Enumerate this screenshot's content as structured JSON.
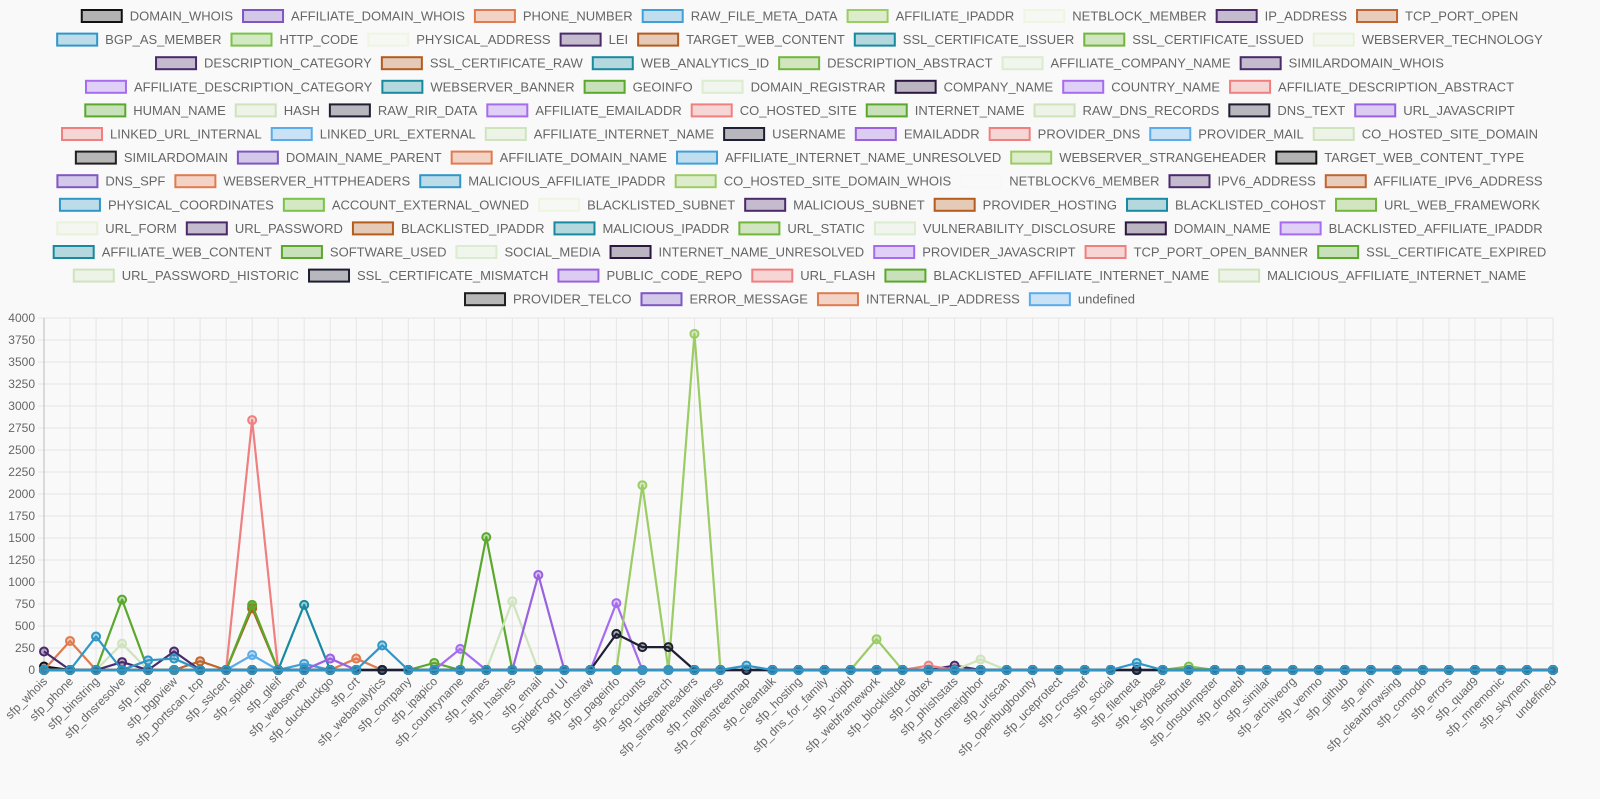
{
  "chart_data": {
    "type": "line",
    "ylim": [
      0,
      4000
    ],
    "yticks": [
      0,
      250,
      500,
      750,
      1000,
      1250,
      1500,
      1750,
      2000,
      2250,
      2500,
      2750,
      3000,
      3250,
      3500,
      3750,
      4000
    ],
    "grid": true,
    "legend_position": "top",
    "categories": [
      "sfp_whois",
      "sfp_phone",
      "sfp_binstring",
      "sfp_dnsresolve",
      "sfp_ripe",
      "sfp_bgpview",
      "sfp_portscan_tcp",
      "sfp_sslcert",
      "sfp_spider",
      "sfp_gleif",
      "sfp_webserver",
      "sfp_duckduckgo",
      "sfp_crt",
      "sfp_webanalytics",
      "sfp_company",
      "sfp_ipapico",
      "sfp_countryname",
      "sfp_names",
      "sfp_hashes",
      "sfp_email",
      "SpiderFoot UI",
      "sfp_dnsraw",
      "sfp_pageinfo",
      "sfp_accounts",
      "sfp_tldsearch",
      "sfp_strangeheaders",
      "sfp_malliverse",
      "sfp_openstreetmap",
      "sfp_cleantalk",
      "sfp_hosting",
      "sfp_dns_for_family",
      "sfp_voipbl",
      "sfp_webframework",
      "sfp_blocklistde",
      "sfp_robtex",
      "sfp_phishstats",
      "sfp_dnsneighbor",
      "sfp_urlscan",
      "sfp_openbugbounty",
      "sfp_uceprotect",
      "sfp_crossref",
      "sfp_social",
      "sfp_filemeta",
      "sfp_keybase",
      "sfp_dnsbrute",
      "sfp_dnsdumpster",
      "sfp_dronebl",
      "sfp_similar",
      "sfp_archiveorg",
      "sfp_venmo",
      "sfp_github",
      "sfp_arin",
      "sfp_cleanbrowsing",
      "sfp_comodo",
      "sfp_errors",
      "sfp_quad9",
      "sfp_mnemonic",
      "sfp_skymem",
      "undefined"
    ],
    "series": [
      {
        "name": "DOMAIN_WHOIS",
        "color": "#111111",
        "points": {
          "sfp_whois": 40
        }
      },
      {
        "name": "AFFILIATE_DOMAIN_WHOIS",
        "color": "#7e57c2",
        "points": {}
      },
      {
        "name": "PHONE_NUMBER",
        "color": "#e07b4f",
        "points": {
          "sfp_phone": 330
        }
      },
      {
        "name": "RAW_FILE_META_DATA",
        "color": "#3fa0d8",
        "points": {}
      },
      {
        "name": "AFFILIATE_IPADDR",
        "color": "#9ccc65",
        "points": {}
      },
      {
        "name": "NETBLOCK_MEMBER",
        "color": "#eef5e3",
        "points": {}
      },
      {
        "name": "IP_ADDRESS",
        "color": "#4a2a6b",
        "points": {
          "sfp_whois": 210,
          "sfp_dnsresolve": 90,
          "sfp_bgpview": 210
        }
      },
      {
        "name": "TCP_PORT_OPEN",
        "color": "#c0652f",
        "points": {
          "sfp_portscan_tcp": 100
        }
      },
      {
        "name": "BGP_AS_MEMBER",
        "color": "#2f97c7",
        "points": {
          "sfp_binstring": 380,
          "sfp_ripe": 110,
          "sfp_bgpview": 130
        }
      },
      {
        "name": "HTTP_CODE",
        "color": "#7cc24a",
        "points": {
          "sfp_spider": 720
        }
      },
      {
        "name": "PHYSICAL_ADDRESS",
        "color": "#eef5e3",
        "points": {}
      },
      {
        "name": "LEI",
        "color": "#4a2a6b",
        "points": {}
      },
      {
        "name": "TARGET_WEB_CONTENT",
        "color": "#b45c1e",
        "points": {
          "sfp_spider": 700
        }
      },
      {
        "name": "SSL_CERTIFICATE_ISSUER",
        "color": "#178aa0",
        "points": {}
      },
      {
        "name": "SSL_CERTIFICATE_ISSUED",
        "color": "#72b63b",
        "points": {}
      },
      {
        "name": "WEBSERVER_TECHNOLOGY",
        "color": "#e8f2da",
        "points": {}
      },
      {
        "name": "DESCRIPTION_CATEGORY",
        "color": "#4a2a6b",
        "points": {}
      },
      {
        "name": "SSL_CERTIFICATE_RAW",
        "color": "#b45c1e",
        "points": {}
      },
      {
        "name": "WEB_ANALYTICS_ID",
        "color": "#178aa0",
        "points": {}
      },
      {
        "name": "DESCRIPTION_ABSTRACT",
        "color": "#72b63b",
        "points": {}
      },
      {
        "name": "AFFILIATE_COMPANY_NAME",
        "color": "#dceccf",
        "points": {}
      },
      {
        "name": "SIMILARDOMAIN_WHOIS",
        "color": "#4a2a6b",
        "points": {}
      },
      {
        "name": "AFFILIATE_DESCRIPTION_CATEGORY",
        "color": "#a66cf0",
        "points": {}
      },
      {
        "name": "WEBSERVER_BANNER",
        "color": "#178aa0",
        "points": {
          "sfp_webserver": 740
        }
      },
      {
        "name": "GEOINFO",
        "color": "#5aa82c",
        "points": {
          "sfp_ipapico": 80
        }
      },
      {
        "name": "DOMAIN_REGISTRAR",
        "color": "#dceccf",
        "points": {}
      },
      {
        "name": "COMPANY_NAME",
        "color": "#2b1740",
        "points": {}
      },
      {
        "name": "COUNTRY_NAME",
        "color": "#a66cf0",
        "points": {
          "sfp_countryname": 240
        }
      },
      {
        "name": "AFFILIATE_DESCRIPTION_ABSTRACT",
        "color": "#f08080",
        "points": {}
      },
      {
        "name": "HUMAN_NAME",
        "color": "#5aa82c",
        "points": {
          "sfp_names": 1510
        }
      },
      {
        "name": "HASH",
        "color": "#cfe3bd",
        "points": {
          "sfp_hashes": 780
        }
      },
      {
        "name": "RAW_RIR_DATA",
        "color": "#1f1f33",
        "points": {
          "sfp_pageinfo": 410,
          "sfp_accounts": 260,
          "sfp_tldsearch": 260
        }
      },
      {
        "name": "AFFILIATE_EMAILADDR",
        "color": "#a66cf0",
        "points": {}
      },
      {
        "name": "CO_HOSTED_SITE",
        "color": "#f08080",
        "points": {}
      },
      {
        "name": "INTERNET_NAME",
        "color": "#5aa82c",
        "points": {
          "sfp_dnsresolve": 800
        }
      },
      {
        "name": "RAW_DNS_RECORDS",
        "color": "#cfe3bd",
        "points": {}
      },
      {
        "name": "DNS_TEXT",
        "color": "#1f1f33",
        "points": {}
      },
      {
        "name": "URL_JAVASCRIPT",
        "color": "#9a62e0",
        "points": {}
      },
      {
        "name": "LINKED_URL_INTERNAL",
        "color": "#f08080",
        "points": {
          "sfp_spider": 2840
        }
      },
      {
        "name": "LINKED_URL_EXTERNAL",
        "color": "#5aacea",
        "points": {
          "sfp_spider": 170
        }
      },
      {
        "name": "AFFILIATE_INTERNET_NAME",
        "color": "#cfe3bd",
        "points": {
          "sfp_dnsresolve": 300
        }
      },
      {
        "name": "USERNAME",
        "color": "#1f1f33",
        "points": {}
      },
      {
        "name": "EMAILADDR",
        "color": "#9a62e0",
        "points": {
          "sfp_email": 1080
        }
      },
      {
        "name": "PROVIDER_DNS",
        "color": "#f08080",
        "points": {}
      },
      {
        "name": "PROVIDER_MAIL",
        "color": "#5aacea",
        "points": {}
      },
      {
        "name": "CO_HOSTED_SITE_DOMAIN",
        "color": "#cfe3bd",
        "points": {}
      },
      {
        "name": "SIMILARDOMAIN",
        "color": "#1f1f1f",
        "points": {}
      },
      {
        "name": "DOMAIN_NAME_PARENT",
        "color": "#7e57c2",
        "points": {}
      },
      {
        "name": "AFFILIATE_DOMAIN_NAME",
        "color": "#e07b4f",
        "points": {
          "sfp_crt": 130
        }
      },
      {
        "name": "AFFILIATE_INTERNET_NAME_UNRESOLVED",
        "color": "#3fa0d8",
        "points": {
          "sfp_webserver": 70
        }
      },
      {
        "name": "WEBSERVER_STRANGEHEADER",
        "color": "#9ccc65",
        "points": {
          "sfp_strangeheaders": 3820
        }
      },
      {
        "name": "TARGET_WEB_CONTENT_TYPE",
        "color": "#111111",
        "points": {}
      },
      {
        "name": "DNS_SPF",
        "color": "#7e57c2",
        "points": {}
      },
      {
        "name": "WEBSERVER_HTTPHEADERS",
        "color": "#e07b4f",
        "points": {}
      },
      {
        "name": "MALICIOUS_AFFILIATE_IPADDR",
        "color": "#2f97c7",
        "points": {
          "sfp_webanalytics": 280,
          "sfp_openstreetmap": 50,
          "sfp_filemeta": 80
        }
      },
      {
        "name": "CO_HOSTED_SITE_DOMAIN_WHOIS",
        "color": "#9ccc65",
        "points": {
          "sfp_accounts": 2100,
          "sfp_webframework": 350
        }
      },
      {
        "name": "NETBLOCKV6_MEMBER",
        "color": "#f7f7f7",
        "points": {}
      },
      {
        "name": "IPV6_ADDRESS",
        "color": "#4a2a6b",
        "points": {
          "sfp_phishstats": 50
        }
      },
      {
        "name": "AFFILIATE_IPV6_ADDRESS",
        "color": "#c0652f",
        "points": {}
      },
      {
        "name": "PHYSICAL_COORDINATES",
        "color": "#2f97c7",
        "points": {}
      },
      {
        "name": "ACCOUNT_EXTERNAL_OWNED",
        "color": "#7cc24a",
        "points": {
          "sfp_dnsbrute": 40
        }
      },
      {
        "name": "BLACKLISTED_SUBNET",
        "color": "#eef5e3",
        "points": {}
      },
      {
        "name": "MALICIOUS_SUBNET",
        "color": "#4a2a6b",
        "points": {}
      },
      {
        "name": "PROVIDER_HOSTING",
        "color": "#b45c1e",
        "points": {}
      },
      {
        "name": "BLACKLISTED_COHOST",
        "color": "#178aa0",
        "points": {}
      },
      {
        "name": "URL_WEB_FRAMEWORK",
        "color": "#72b63b",
        "points": {}
      },
      {
        "name": "URL_FORM",
        "color": "#e8f2da",
        "points": {}
      },
      {
        "name": "URL_PASSWORD",
        "color": "#4a2a6b",
        "points": {}
      },
      {
        "name": "BLACKLISTED_IPADDR",
        "color": "#b45c1e",
        "points": {}
      },
      {
        "name": "MALICIOUS_IPADDR",
        "color": "#178aa0",
        "points": {}
      },
      {
        "name": "URL_STATIC",
        "color": "#72b63b",
        "points": {}
      },
      {
        "name": "VULNERABILITY_DISCLOSURE",
        "color": "#dceccf",
        "points": {}
      },
      {
        "name": "DOMAIN_NAME",
        "color": "#2b1740",
        "points": {}
      },
      {
        "name": "BLACKLISTED_AFFILIATE_IPADDR",
        "color": "#a66cf0",
        "points": {}
      },
      {
        "name": "AFFILIATE_WEB_CONTENT",
        "color": "#178aa0",
        "points": {}
      },
      {
        "name": "SOFTWARE_USED",
        "color": "#5aa82c",
        "points": {
          "sfp_spider": 740
        }
      },
      {
        "name": "SOCIAL_MEDIA",
        "color": "#dceccf",
        "points": {}
      },
      {
        "name": "INTERNET_NAME_UNRESOLVED",
        "color": "#2b1740",
        "points": {}
      },
      {
        "name": "PROVIDER_JAVASCRIPT",
        "color": "#a66cf0",
        "points": {
          "sfp_pageinfo": 760
        }
      },
      {
        "name": "TCP_PORT_OPEN_BANNER",
        "color": "#f08080",
        "points": {}
      },
      {
        "name": "SSL_CERTIFICATE_EXPIRED",
        "color": "#5aa82c",
        "points": {}
      },
      {
        "name": "URL_PASSWORD_HISTORIC",
        "color": "#cfe3bd",
        "points": {}
      },
      {
        "name": "SSL_CERTIFICATE_MISMATCH",
        "color": "#1f1f33",
        "points": {}
      },
      {
        "name": "PUBLIC_CODE_REPO",
        "color": "#9a62e0",
        "points": {
          "sfp_duckduckgo": 130
        }
      },
      {
        "name": "URL_FLASH",
        "color": "#f08080",
        "points": {
          "sfp_robtex": 50
        }
      },
      {
        "name": "BLACKLISTED_AFFILIATE_INTERNET_NAME",
        "color": "#5aa82c",
        "points": {}
      },
      {
        "name": "MALICIOUS_AFFILIATE_INTERNET_NAME",
        "color": "#cfe3bd",
        "points": {
          "sfp_dnsneighbor": 120
        }
      },
      {
        "name": "PROVIDER_TELCO",
        "color": "#1f1f1f",
        "points": {}
      },
      {
        "name": "ERROR_MESSAGE",
        "color": "#7e57c2",
        "points": {}
      },
      {
        "name": "INTERNAL_IP_ADDRESS",
        "color": "#e07b4f",
        "points": {}
      },
      {
        "name": "undefined",
        "color": "#5aacea",
        "points": {}
      }
    ]
  }
}
